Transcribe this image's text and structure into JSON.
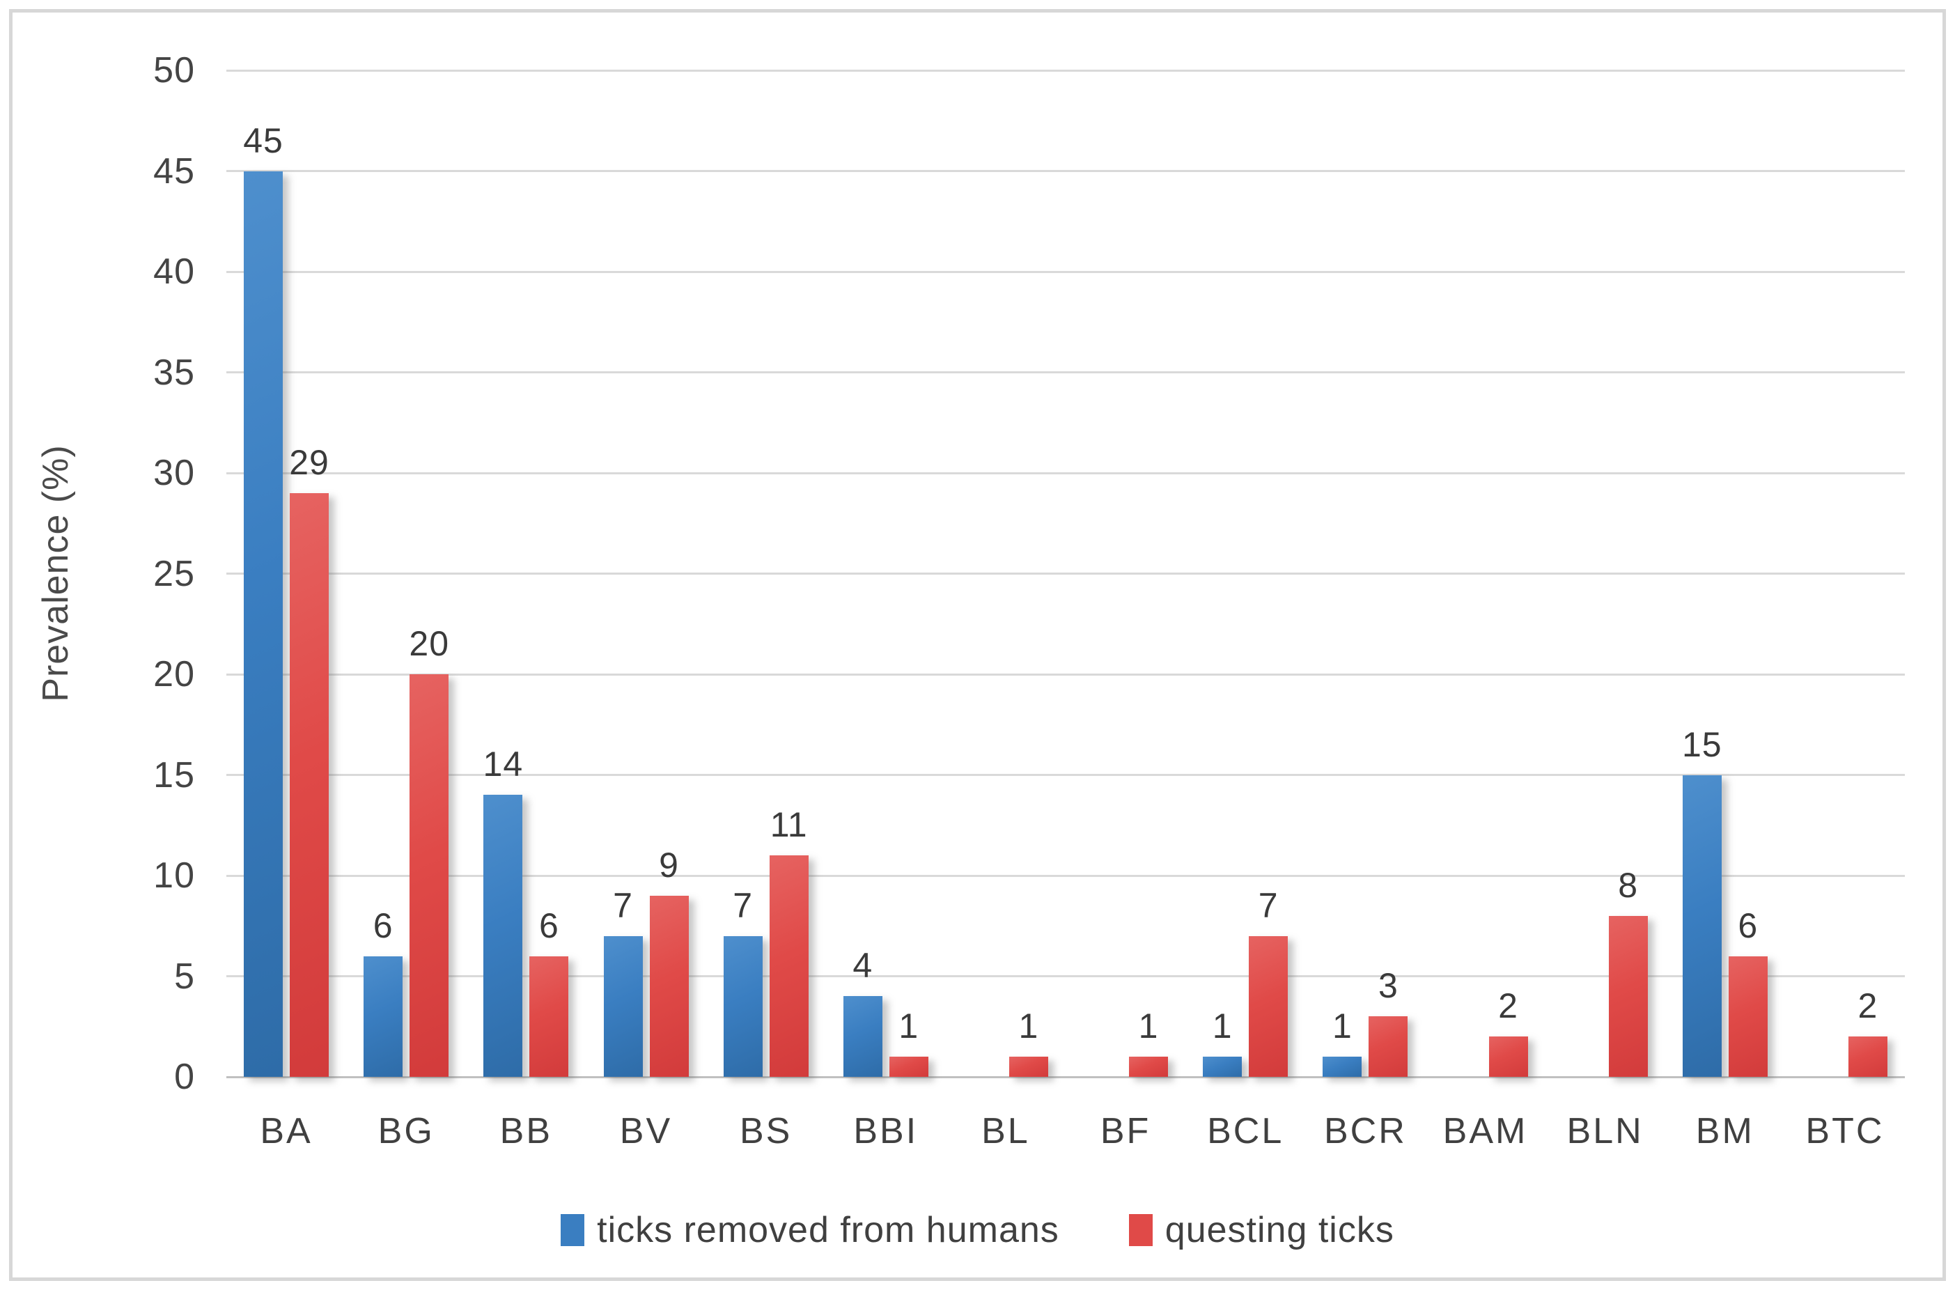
{
  "chart_data": {
    "type": "bar",
    "title": "",
    "ylabel": "Prevalence (%)",
    "xlabel": "",
    "ylim": [
      0,
      50
    ],
    "ytick_step": 5,
    "yticks": [
      "0",
      "5",
      "10",
      "15",
      "20",
      "25",
      "30",
      "35",
      "40",
      "45",
      "50"
    ],
    "grid": true,
    "legend_position": "bottom",
    "data_labels": true,
    "categories": [
      "BA",
      "BG",
      "BB",
      "BV",
      "BS",
      "BBI",
      "BL",
      "BF",
      "BCL",
      "BCR",
      "BAM",
      "BLN",
      "BM",
      "BTC"
    ],
    "series": [
      {
        "name": "ticks removed from humans",
        "color": "#3a7ec1",
        "values": [
          45,
          6,
          14,
          7,
          7,
          4,
          0,
          0,
          1,
          1,
          0,
          0,
          15,
          0
        ]
      },
      {
        "name": "questing ticks",
        "color": "#e04a48",
        "values": [
          29,
          20,
          6,
          9,
          11,
          1,
          1,
          1,
          7,
          3,
          2,
          8,
          6,
          2
        ]
      }
    ],
    "colors": {
      "gridline": "#d9d9d9",
      "axis_line": "#c0c0c0",
      "text": "#404040"
    }
  }
}
